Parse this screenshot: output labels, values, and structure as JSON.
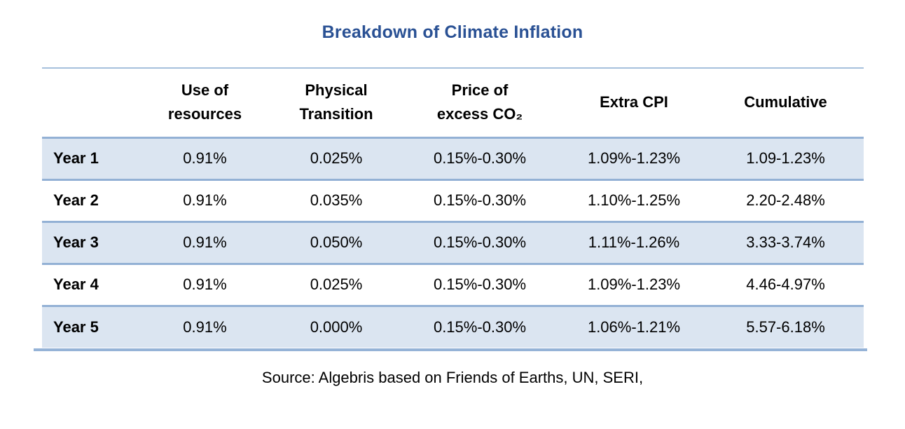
{
  "title": "Breakdown of Climate Inflation",
  "source": "Source: Algebris based on Friends of Earths, UN, SERI,",
  "colors": {
    "title": "#2a5194",
    "row_shade": "#dbe5f1",
    "row_rule": "#93b1d5",
    "top_rule": "#a6c0dc",
    "bottom_rule": "#95b3d7",
    "text": "#000000"
  },
  "table": {
    "columns": [
      "",
      "Use of\nresources",
      "Physical\nTransition",
      "Price of\nexcess CO₂",
      "Extra CPI",
      "Cumulative"
    ],
    "rows": [
      {
        "label": "Year 1",
        "cells": [
          "0.91%",
          "0.025%",
          "0.15%-0.30%",
          "1.09%-1.23%",
          "1.09-1.23%"
        ]
      },
      {
        "label": "Year 2",
        "cells": [
          "0.91%",
          "0.035%",
          "0.15%-0.30%",
          "1.10%-1.25%",
          "2.20-2.48%"
        ]
      },
      {
        "label": "Year 3",
        "cells": [
          "0.91%",
          "0.050%",
          "0.15%-0.30%",
          "1.11%-1.26%",
          "3.33-3.74%"
        ]
      },
      {
        "label": "Year 4",
        "cells": [
          "0.91%",
          "0.025%",
          "0.15%-0.30%",
          "1.09%-1.23%",
          "4.46-4.97%"
        ]
      },
      {
        "label": "Year 5",
        "cells": [
          "0.91%",
          "0.000%",
          "0.15%-0.30%",
          "1.06%-1.21%",
          "5.57-6.18%"
        ]
      }
    ]
  },
  "chart_data": {
    "type": "table",
    "title": "Breakdown of Climate Inflation",
    "categories": [
      "Year 1",
      "Year 2",
      "Year 3",
      "Year 4",
      "Year 5"
    ],
    "series": [
      {
        "name": "Use of resources",
        "values": [
          "0.91%",
          "0.91%",
          "0.91%",
          "0.91%",
          "0.91%"
        ]
      },
      {
        "name": "Physical Transition",
        "values": [
          "0.025%",
          "0.035%",
          "0.050%",
          "0.025%",
          "0.000%"
        ]
      },
      {
        "name": "Price of excess CO₂",
        "values": [
          "0.15%-0.30%",
          "0.15%-0.30%",
          "0.15%-0.30%",
          "0.15%-0.30%",
          "0.15%-0.30%"
        ]
      },
      {
        "name": "Extra CPI",
        "values": [
          "1.09%-1.23%",
          "1.10%-1.25%",
          "1.11%-1.26%",
          "1.09%-1.23%",
          "1.06%-1.21%"
        ]
      },
      {
        "name": "Cumulative",
        "values": [
          "1.09-1.23%",
          "2.20-2.48%",
          "3.33-3.74%",
          "4.46-4.97%",
          "5.57-6.18%"
        ]
      }
    ]
  }
}
